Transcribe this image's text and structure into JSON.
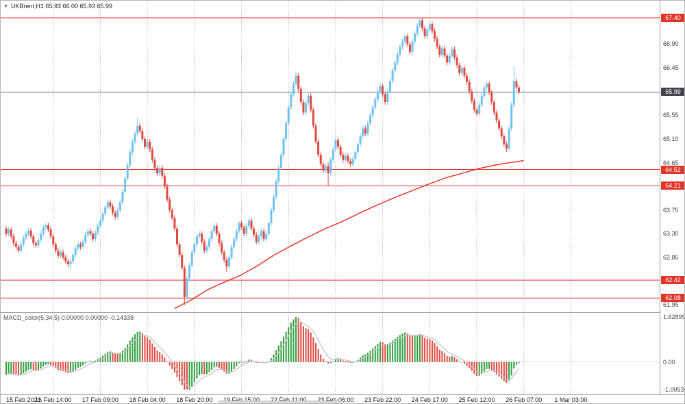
{
  "header": {
    "title": "UKBrent,H1 65.93 66.00 65.93 65.99",
    "collapse_icon": "triangle-down"
  },
  "chart_data": {
    "type": "candlestick",
    "symbol": "UKBrent",
    "timeframe": "H1",
    "title": "UKBrent,H1 65.93 66.00 65.93 65.99",
    "current_bar": {
      "open": 65.93,
      "high": 66.0,
      "low": 65.93,
      "close": 65.99
    },
    "current_price": 65.99,
    "ylim": [
      61.81,
      67.725
    ],
    "y_ticks": [
      "66.90",
      "66.45",
      "65.55",
      "65.10",
      "64.65",
      "63.75",
      "63.30",
      "62.85",
      "61.95"
    ],
    "price_levels": [
      67.4,
      64.52,
      64.21,
      62.42,
      62.08
    ],
    "x_labels": [
      "15 Feb 2021",
      "16 Feb 14:00",
      "17 Feb 09:00",
      "18 Feb 04:00",
      "18 Feb 20:00",
      "19 Feb 15:00",
      "22 Feb 11:00",
      "23 Feb 06:00",
      "23 Feb 22:00",
      "24 Feb 17:00",
      "25 Feb 12:00",
      "26 Feb 07:00",
      "1 Mar 03:00"
    ],
    "candles_per_gridline": 19,
    "first_open": 63.4,
    "closes": [
      63.3,
      63.38,
      63.25,
      63.12,
      63.05,
      62.98,
      63.1,
      63.22,
      63.3,
      63.36,
      63.25,
      63.12,
      63.08,
      63.18,
      63.3,
      63.42,
      63.46,
      63.38,
      63.25,
      63.1,
      62.98,
      62.88,
      62.95,
      62.85,
      62.78,
      62.72,
      62.78,
      62.9,
      63.02,
      63.1,
      63.05,
      63.15,
      63.28,
      63.35,
      63.3,
      63.2,
      63.32,
      63.45,
      63.55,
      63.68,
      63.8,
      63.9,
      63.82,
      63.7,
      63.62,
      63.75,
      63.9,
      64.1,
      64.35,
      64.6,
      64.85,
      65.05,
      65.2,
      65.35,
      65.25,
      65.1,
      64.95,
      65.05,
      64.9,
      64.7,
      64.55,
      64.45,
      64.55,
      64.4,
      64.2,
      63.95,
      63.75,
      63.6,
      63.4,
      63.1,
      62.9,
      62.65,
      62.1,
      62.45,
      62.7,
      62.95,
      63.1,
      63.25,
      63.3,
      63.15,
      62.98,
      63.05,
      63.2,
      63.35,
      63.45,
      63.3,
      63.12,
      62.95,
      62.8,
      62.68,
      62.85,
      63.05,
      63.2,
      63.35,
      63.5,
      63.42,
      63.3,
      63.45,
      63.55,
      63.4,
      63.28,
      63.15,
      63.25,
      63.35,
      63.2,
      63.3,
      63.5,
      63.75,
      64.0,
      64.3,
      64.55,
      64.8,
      65.1,
      65.4,
      65.7,
      65.95,
      66.15,
      66.3,
      66.05,
      65.8,
      65.6,
      65.78,
      65.92,
      65.65,
      65.35,
      65.05,
      64.8,
      64.62,
      64.5,
      64.58,
      64.45,
      64.7,
      64.9,
      65.08,
      64.95,
      64.8,
      64.7,
      64.78,
      64.68,
      64.62,
      64.72,
      64.85,
      65.0,
      65.15,
      65.3,
      65.2,
      65.4,
      65.55,
      65.7,
      65.85,
      66.0,
      66.1,
      65.95,
      65.8,
      66.0,
      66.2,
      66.4,
      66.55,
      66.7,
      66.85,
      66.95,
      67.05,
      66.9,
      66.75,
      66.95,
      67.1,
      67.25,
      67.35,
      67.2,
      67.05,
      67.18,
      67.28,
      67.15,
      67.0,
      66.85,
      66.7,
      66.82,
      66.68,
      66.55,
      66.68,
      66.8,
      66.65,
      66.5,
      66.35,
      66.45,
      66.3,
      66.18,
      66.0,
      65.82,
      65.65,
      65.58,
      65.75,
      65.92,
      66.08,
      66.15,
      65.98,
      65.8,
      65.6,
      65.45,
      65.3,
      65.15,
      65.0,
      64.92,
      65.3,
      65.75,
      66.2,
      66.08,
      65.99
    ],
    "wick_overrides": {
      "26": {
        "low": 62.62
      },
      "53": {
        "high": 65.5
      },
      "72": {
        "low": 61.95
      },
      "89": {
        "low": 62.58
      },
      "117": {
        "high": 66.38
      },
      "130": {
        "high": 64.66,
        "low": 64.21
      },
      "167": {
        "high": 67.4
      },
      "202": {
        "low": 64.85
      },
      "205": {
        "high": 66.48
      }
    },
    "ma_line": {
      "name": "moving-average",
      "points": [
        [
          68,
          61.88
        ],
        [
          75,
          62.05
        ],
        [
          81,
          62.23
        ],
        [
          88,
          62.38
        ],
        [
          95,
          62.52
        ],
        [
          101,
          62.68
        ],
        [
          108,
          62.89
        ],
        [
          115,
          63.07
        ],
        [
          122,
          63.24
        ],
        [
          129,
          63.4
        ],
        [
          136,
          63.54
        ],
        [
          143,
          63.7
        ],
        [
          150,
          63.85
        ],
        [
          157,
          63.99
        ],
        [
          164,
          64.12
        ],
        [
          171,
          64.25
        ],
        [
          178,
          64.37
        ],
        [
          185,
          64.46
        ],
        [
          191,
          64.54
        ],
        [
          197,
          64.6
        ],
        [
          202,
          64.64
        ],
        [
          209,
          64.69
        ]
      ]
    },
    "macd": {
      "label": "MACD_color(5,34,5) 0.00000 0.00000 -0.14338",
      "fast": 5,
      "slow": 34,
      "signal": 5,
      "values_shown": [
        "0.00000",
        "0.00000",
        "-0.14338"
      ],
      "axis_max": 1.62899,
      "axis_min": -1.00532,
      "axis_labels": [
        [
          "1.62899",
          1.62899
        ],
        [
          "0.00",
          0
        ],
        [
          "-1.00532",
          -1.00532
        ]
      ]
    },
    "colors": {
      "bull": "#6fc2ef",
      "bear": "#e04940",
      "level": "#e23328",
      "price_box": "#44444f",
      "current_line": "#6b6b76",
      "ma": "#e8342a",
      "macd_up": "#2f9e3f",
      "macd_down": "#e04940",
      "signal": "#c4c4c4",
      "grid": "#ababab",
      "axis_text": "#3f3f3f"
    }
  }
}
